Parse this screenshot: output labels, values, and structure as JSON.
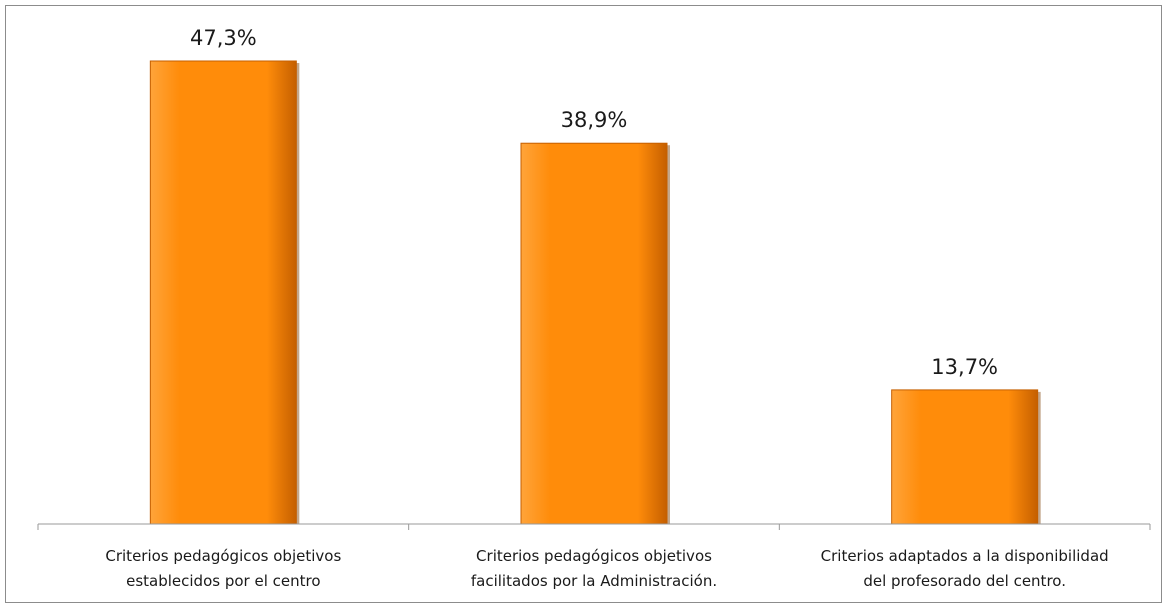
{
  "chart_data": {
    "type": "bar",
    "categories": [
      [
        "Criterios pedagógicos objetivos",
        "establecidos por el centro"
      ],
      [
        "Criterios pedagógicos objetivos",
        "facilitados por la Administración."
      ],
      [
        "Criterios adaptados a la disponibilidad",
        "del profesorado del centro."
      ]
    ],
    "values": [
      47.3,
      38.9,
      13.7
    ],
    "data_labels": [
      "47,3%",
      "38,9%",
      "13,7%"
    ],
    "ylim": [
      0,
      50
    ],
    "grid": false,
    "legend": "none",
    "colors": {
      "bar_fill": "#ff8c0a",
      "bar_light": "#ffa43a",
      "bar_dark": "#c55f00",
      "axis": "#9a9a9a"
    }
  }
}
